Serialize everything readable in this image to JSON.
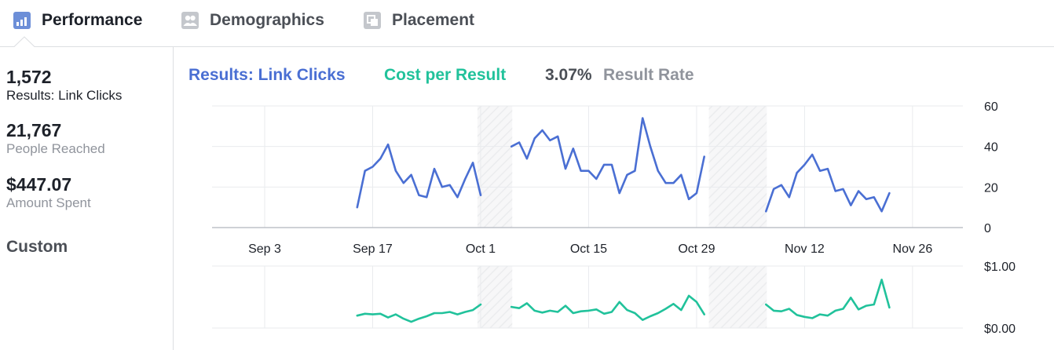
{
  "tabs": [
    {
      "label": "Performance",
      "icon": "bar-chart-icon"
    },
    {
      "label": "Demographics",
      "icon": "people-icon"
    },
    {
      "label": "Placement",
      "icon": "placement-icon"
    }
  ],
  "stats": {
    "results": {
      "value": "1,572",
      "label": "Results: Link Clicks"
    },
    "reach": {
      "value": "21,767",
      "label": "People Reached"
    },
    "spent": {
      "value": "$447.07",
      "label": "Amount Spent"
    },
    "custom_label": "Custom"
  },
  "legend": {
    "results": "Results: Link Clicks",
    "cost": "Cost per Result",
    "rate_value": "3.07%",
    "rate_label": "Result Rate"
  },
  "colors": {
    "results": "#4a6fd3",
    "cost": "#21c29b",
    "grid": "#e9ebee",
    "axis": "#dddfe2",
    "hatch": "#f2f3f5"
  },
  "chart_data": [
    {
      "type": "line",
      "series": [
        {
          "name": "Results: Link Clicks",
          "color": "#4a6fd3"
        }
      ],
      "x_tick_labels": [
        "Sep 3",
        "Sep 17",
        "Oct 1",
        "Oct 15",
        "Oct 29",
        "Nov 12",
        "Nov 26"
      ],
      "y_ticks": [
        "0",
        "20",
        "40",
        "60"
      ],
      "ylim": [
        0,
        60
      ],
      "grid": true,
      "excluded_periods": [
        [
          "Oct 1",
          "Oct 5"
        ],
        [
          "Oct 31",
          "Nov 7"
        ]
      ],
      "segments": [
        {
          "start": "Sep 15",
          "values": [
            10,
            28,
            30,
            34,
            41,
            28,
            22,
            26,
            16,
            15,
            29,
            20,
            21,
            15,
            24,
            32,
            16
          ]
        },
        {
          "start": "Oct 5",
          "values": [
            40,
            42,
            34,
            44,
            48,
            43,
            45,
            29,
            39,
            28,
            28,
            24,
            31,
            31,
            17,
            26,
            28,
            54,
            40,
            28,
            22,
            22,
            26,
            14,
            17,
            35
          ]
        },
        {
          "start": "Nov 7",
          "values": [
            8,
            19,
            21,
            15,
            27,
            31,
            36,
            28,
            29,
            18,
            19,
            11,
            18,
            14,
            15,
            8,
            17
          ]
        }
      ]
    },
    {
      "type": "line",
      "series": [
        {
          "name": "Cost per Result",
          "color": "#21c29b"
        }
      ],
      "x_tick_labels": [
        "Sep 3",
        "Sep 17",
        "Oct 1",
        "Oct 15",
        "Oct 29",
        "Nov 12",
        "Nov 26"
      ],
      "y_ticks": [
        "$0.00",
        "$1.00"
      ],
      "ylim": [
        0,
        1
      ],
      "grid": true,
      "excluded_periods": [
        [
          "Oct 1",
          "Oct 5"
        ],
        [
          "Oct 31",
          "Nov 7"
        ]
      ],
      "segments": [
        {
          "start": "Sep 15",
          "values": [
            0.2,
            0.23,
            0.22,
            0.23,
            0.17,
            0.22,
            0.15,
            0.1,
            0.15,
            0.19,
            0.24,
            0.24,
            0.26,
            0.22,
            0.26,
            0.29,
            0.38
          ]
        },
        {
          "start": "Oct 5",
          "values": [
            0.34,
            0.32,
            0.4,
            0.28,
            0.25,
            0.28,
            0.26,
            0.36,
            0.24,
            0.27,
            0.28,
            0.3,
            0.23,
            0.26,
            0.42,
            0.29,
            0.24,
            0.13,
            0.19,
            0.24,
            0.31,
            0.39,
            0.29,
            0.52,
            0.42,
            0.22
          ]
        },
        {
          "start": "Nov 7",
          "values": [
            0.38,
            0.28,
            0.27,
            0.31,
            0.21,
            0.18,
            0.16,
            0.22,
            0.2,
            0.28,
            0.31,
            0.49,
            0.3,
            0.36,
            0.38,
            0.78,
            0.33
          ]
        }
      ]
    }
  ]
}
